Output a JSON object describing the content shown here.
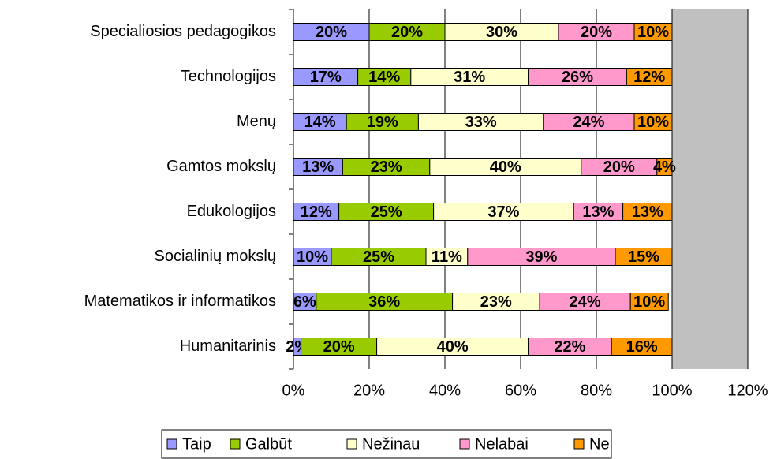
{
  "chart_data": {
    "type": "stacked-bar-horizontal",
    "categories": [
      "Specialiosios pedagogikos",
      "Technologijos",
      "Menų",
      "Gamtos mokslų",
      "Edukologijos",
      "Socialinių mokslų",
      "Matematikos ir informatikos",
      "Humanitarinis"
    ],
    "series": [
      {
        "name": "Taip",
        "color": "#9999ff",
        "values": [
          20,
          17,
          14,
          13,
          12,
          10,
          6,
          2
        ],
        "value_labels": [
          "20%",
          "17%",
          "14%",
          "13%",
          "12%",
          "10%",
          "6%",
          "2%"
        ]
      },
      {
        "name": "Galbūt",
        "color": "#99cc00",
        "values": [
          20,
          14,
          19,
          23,
          25,
          25,
          36,
          20
        ],
        "value_labels": [
          "20%",
          "14%",
          "19%",
          "23%",
          "25%",
          "25%",
          "36%",
          "20%"
        ]
      },
      {
        "name": "Nežinau",
        "color": "#ffffcc",
        "values": [
          30,
          31,
          33,
          40,
          37,
          11,
          23,
          40
        ],
        "value_labels": [
          "30%",
          "31%",
          "33%",
          "40%",
          "37%",
          "11%",
          "23%",
          "40%"
        ]
      },
      {
        "name": "Nelabai",
        "color": "#ff99cc",
        "values": [
          20,
          26,
          24,
          20,
          13,
          39,
          24,
          22
        ],
        "value_labels": [
          "20%",
          "26%",
          "24%",
          "20%",
          "13%",
          "39%",
          "24%",
          "22%"
        ]
      },
      {
        "name": "Ne",
        "color": "#ff9900",
        "values": [
          10,
          12,
          10,
          4,
          13,
          15,
          10,
          16
        ],
        "value_labels": [
          "10%",
          "12%",
          "10%",
          "4%",
          "13%",
          "15%",
          "10%",
          "16%"
        ]
      }
    ],
    "xlim": [
      0,
      120
    ],
    "xticks": [
      {
        "value": 0,
        "label": "0%"
      },
      {
        "value": 20,
        "label": "20%"
      },
      {
        "value": 40,
        "label": "40%"
      },
      {
        "value": 60,
        "label": "60%"
      },
      {
        "value": 80,
        "label": "80%"
      },
      {
        "value": 100,
        "label": "100%"
      },
      {
        "value": 120,
        "label": "120%"
      }
    ],
    "grid": true,
    "legend": "bottom"
  }
}
